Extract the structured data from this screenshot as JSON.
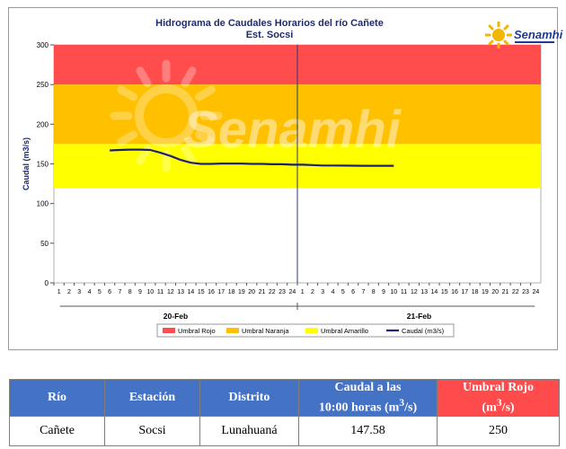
{
  "chart_data": {
    "type": "line",
    "title": "Hidrograma de Caudales Horarios del río Cañete",
    "subtitle": "Est. Socsi",
    "ylabel": "Caudal  (m3/s)",
    "ylim": [
      0,
      300
    ],
    "yticks": [
      0,
      50,
      100,
      150,
      200,
      250,
      300
    ],
    "xticks": [
      "1",
      "2",
      "3",
      "4",
      "5",
      "6",
      "7",
      "8",
      "9",
      "10",
      "11",
      "12",
      "13",
      "14",
      "15",
      "16",
      "17",
      "18",
      "19",
      "20",
      "21",
      "22",
      "23",
      "24",
      "1",
      "2",
      "3",
      "4",
      "5",
      "6",
      "7",
      "8",
      "9",
      "10",
      "11",
      "12",
      "13",
      "14",
      "15",
      "16",
      "17",
      "18",
      "19",
      "20",
      "21",
      "22",
      "23",
      "24"
    ],
    "days": [
      "20-Feb",
      "21-Feb"
    ],
    "bands": [
      {
        "name": "Umbral Rojo",
        "from": 250,
        "to": 300,
        "color": "#ff4d4d"
      },
      {
        "name": "Umbral Naranja",
        "from": 175,
        "to": 250,
        "color": "#ffc000"
      },
      {
        "name": "Umbral Amarillo",
        "from": 120,
        "to": 175,
        "color": "#ffff00"
      }
    ],
    "series": [
      {
        "name": "Caudal (m3/s)",
        "color": "#1f1f7a",
        "values": [
          null,
          null,
          null,
          null,
          null,
          167,
          167.5,
          168,
          168,
          167.5,
          164,
          160,
          155,
          151.5,
          150,
          150,
          150.5,
          150.5,
          150.5,
          150,
          150,
          149.5,
          149.5,
          149,
          149,
          148.5,
          148,
          148,
          147.8,
          147.7,
          147.6,
          147.6,
          147.6,
          147.58
        ]
      }
    ],
    "legend": [
      "Umbral Rojo",
      "Umbral Naranja",
      "Umbral Amarillo",
      "Caudal (m3/s)"
    ],
    "legend_position": "bottom",
    "watermark": "Senamhi"
  },
  "logo": {
    "text": "Senamhi"
  },
  "table": {
    "headers": {
      "rio": "Río",
      "estacion": "Estación",
      "distrito": "Distrito",
      "caudal_line1": "Caudal a las",
      "caudal_line2": "10:00 horas (m",
      "caudal_sup": "3",
      "caudal_end": "/s)",
      "umbral_line1": "Umbral Rojo",
      "umbral_line2": "(m",
      "umbral_sup": "3",
      "umbral_end": "/s)"
    },
    "row": {
      "rio": "Cañete",
      "estacion": "Socsi",
      "distrito": "Lunahuaná",
      "caudal": "147.58",
      "umbral": "250"
    }
  }
}
